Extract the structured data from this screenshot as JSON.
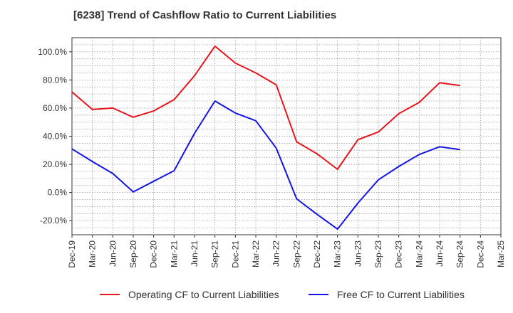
{
  "chart_data": {
    "type": "line",
    "title": "[6238]  Trend of Cashflow Ratio to Current Liabilities",
    "xlabel": "",
    "ylabel": "",
    "x": [
      "Dec-19",
      "Mar-20",
      "Jun-20",
      "Sep-20",
      "Dec-20",
      "Mar-21",
      "Jun-21",
      "Sep-21",
      "Dec-21",
      "Mar-22",
      "Jun-22",
      "Sep-22",
      "Dec-22",
      "Mar-23",
      "Jun-23",
      "Sep-23",
      "Dec-23",
      "Mar-24",
      "Jun-24",
      "Sep-24",
      "Dec-24",
      "Mar-25"
    ],
    "ylim": [
      -30,
      110
    ],
    "yticks": [
      -20,
      0,
      20,
      40,
      60,
      80,
      100
    ],
    "ytick_labels": [
      "-20.0%",
      "0.0%",
      "20.0%",
      "40.0%",
      "60.0%",
      "80.0%",
      "100.0%"
    ],
    "grid": true,
    "legend_position": "bottom",
    "series": [
      {
        "name": "Operating CF to Current Liabilities",
        "color": "#e8141c",
        "values": [
          71.5,
          59,
          60,
          53.5,
          58,
          66,
          83,
          104,
          92,
          85,
          76.5,
          36,
          27.5,
          16.5,
          37.5,
          43,
          56,
          64,
          78,
          76,
          null,
          null
        ]
      },
      {
        "name": "Free CF to Current Liabilities",
        "color": "#1414e8",
        "values": [
          31,
          22,
          13.5,
          0.5,
          8,
          15.5,
          42,
          65,
          56.5,
          51,
          31.5,
          -4.5,
          -15.5,
          -26,
          -7.5,
          9,
          18.5,
          27,
          32.5,
          30.5,
          null,
          null
        ]
      }
    ]
  }
}
